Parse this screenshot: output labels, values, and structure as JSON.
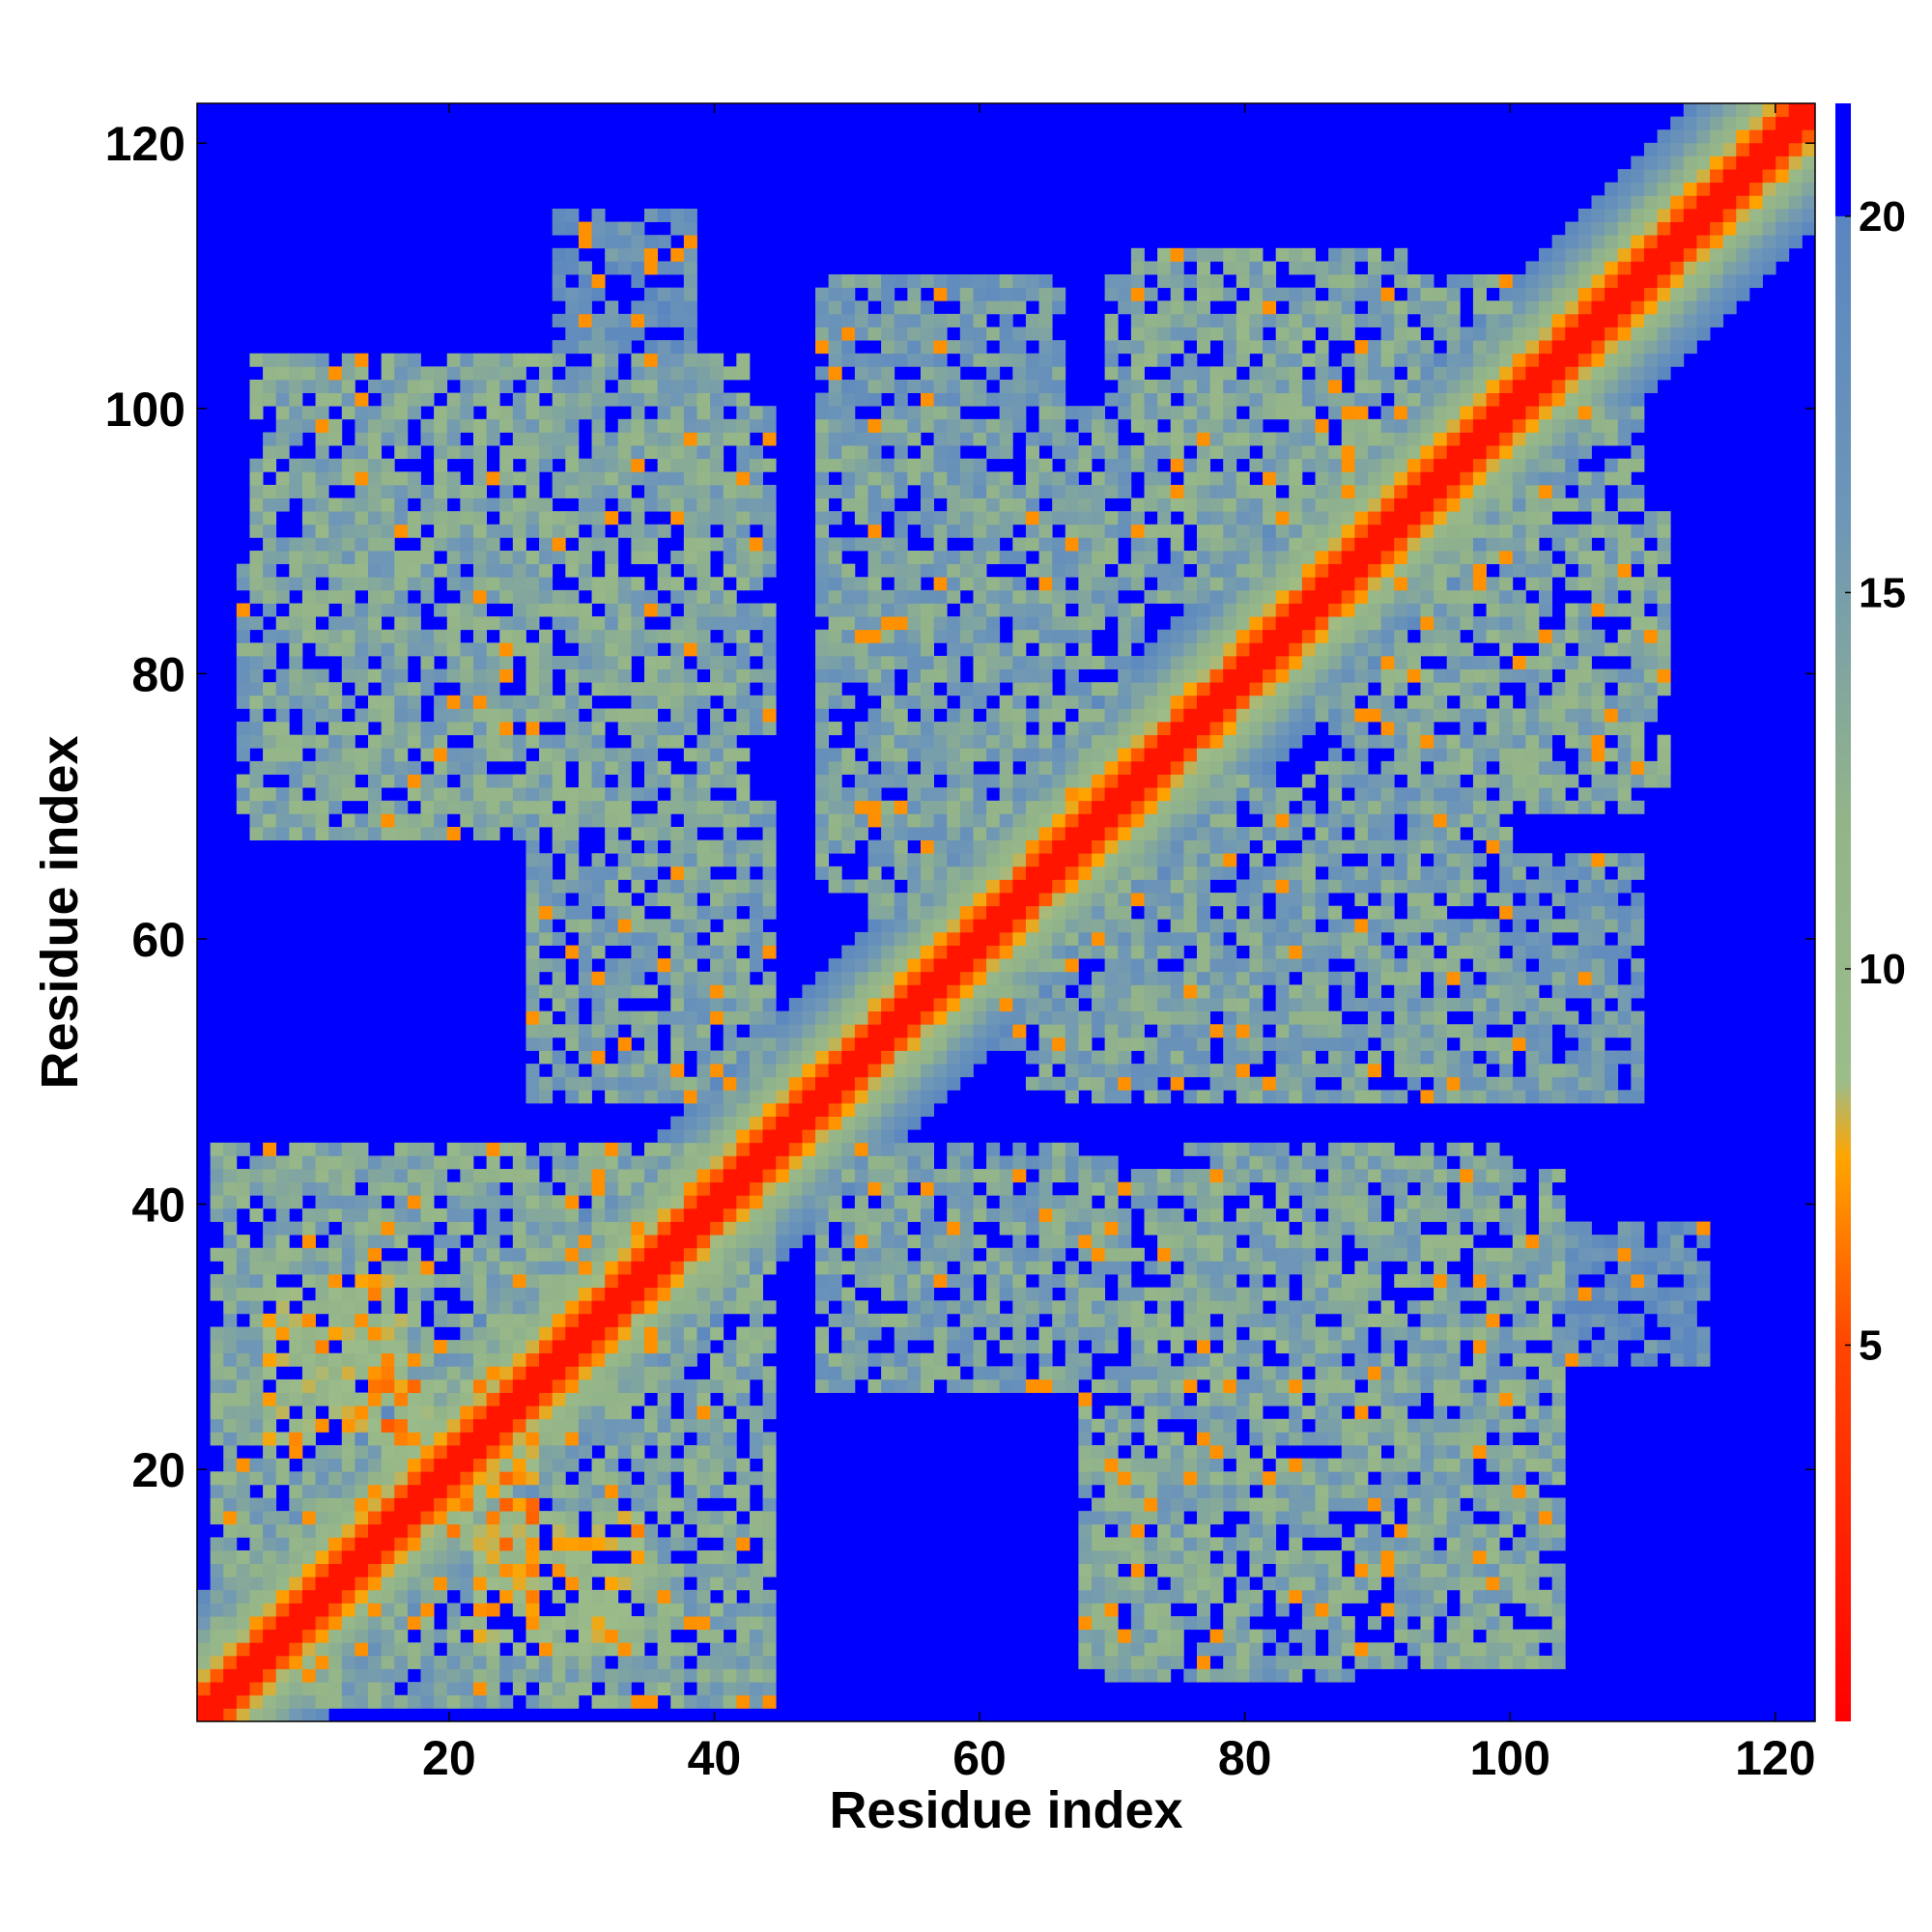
{
  "chart_data": {
    "type": "heatmap",
    "title": "",
    "xlabel": "Residue index",
    "ylabel": "Residue index",
    "n_residues": 123,
    "xlim": [
      1,
      123
    ],
    "ylim": [
      1,
      123
    ],
    "x_ticks": [
      20,
      40,
      60,
      80,
      100,
      120
    ],
    "y_ticks": [
      20,
      40,
      60,
      80,
      100,
      120
    ],
    "colorbar": {
      "range": [
        0,
        21.5
      ],
      "ticks": [
        5,
        10,
        15,
        20
      ],
      "cutoff_value": 20,
      "above_cutoff_color": "#0000ff",
      "stops": [
        {
          "value": 0,
          "color": "#ff0000"
        },
        {
          "value": 5,
          "color": "#ff4500"
        },
        {
          "value": 7.5,
          "color": "#ffa500"
        },
        {
          "value": 8.5,
          "color": "#9cbc8a"
        },
        {
          "value": 12,
          "color": "#93b489"
        },
        {
          "value": 16,
          "color": "#6e96b7"
        },
        {
          "value": 20,
          "color": "#5a86c0"
        }
      ]
    },
    "interaction_blocks": [
      {
        "x": [
          2,
          40
        ],
        "y": [
          4,
          44
        ],
        "dist": 13
      },
      {
        "x": [
          6,
          16
        ],
        "y": [
          22,
          34
        ],
        "dist": 9
      },
      {
        "x": [
          20,
          26
        ],
        "y": [
          14,
          22
        ],
        "dist": 8
      },
      {
        "x": [
          4,
          36
        ],
        "y": [
          70,
          88
        ],
        "dist": 14
      },
      {
        "x": [
          8,
          30
        ],
        "y": [
          86,
          100
        ],
        "dist": 17
      },
      {
        "x": [
          22,
          44
        ],
        "y": [
          76,
          100
        ],
        "dist": 14
      },
      {
        "x": [
          28,
          44
        ],
        "y": [
          48,
          70
        ],
        "dist": 14
      },
      {
        "x": [
          48,
          70
        ],
        "y": [
          26,
          44
        ],
        "dist": 14
      },
      {
        "x": [
          48,
          72
        ],
        "y": [
          72,
          100
        ],
        "dist": 14
      },
      {
        "x": [
          50,
          62
        ],
        "y": [
          96,
          108
        ],
        "dist": 16
      },
      {
        "x": [
          64,
          80
        ],
        "y": [
          48,
          70
        ],
        "dist": 14
      },
      {
        "x": [
          68,
          104
        ],
        "y": [
          5,
          42
        ],
        "dist": 13
      },
      {
        "x": [
          62,
          100
        ],
        "y": [
          52,
          70
        ],
        "dist": 14
      },
      {
        "x": [
          70,
          100
        ],
        "y": [
          86,
          110
        ],
        "dist": 14
      },
      {
        "x": [
          90,
          112
        ],
        "y": [
          72,
          92
        ],
        "dist": 13
      },
      {
        "x": [
          96,
          110
        ],
        "y": [
          48,
          66
        ],
        "dist": 15
      },
      {
        "x": [
          100,
          115
        ],
        "y": [
          28,
          38
        ],
        "dist": 17
      }
    ]
  }
}
